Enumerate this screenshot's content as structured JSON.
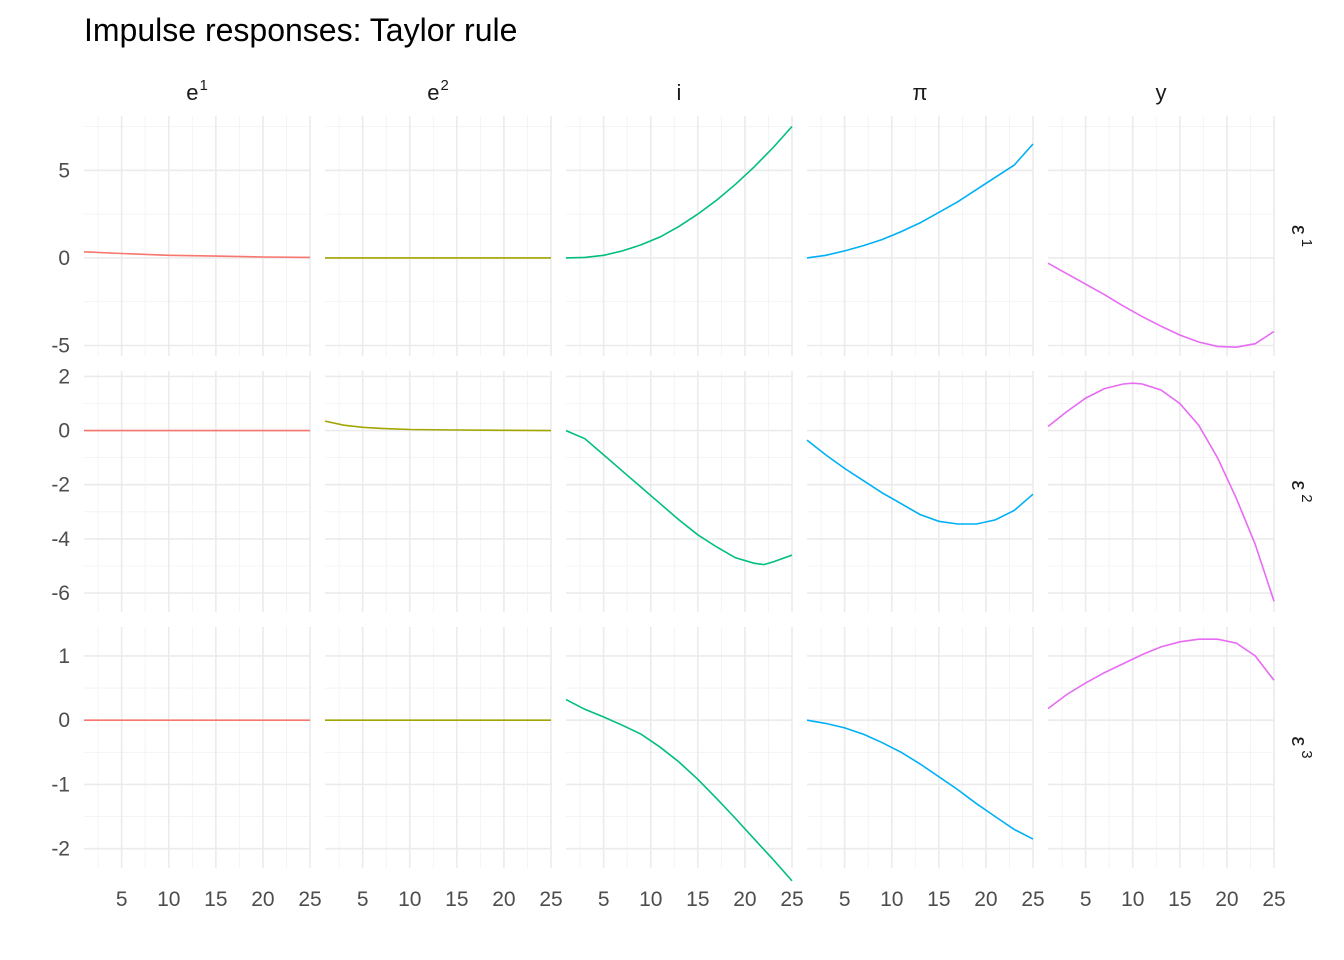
{
  "chart_data": {
    "type": "line",
    "title": "Impulse responses: Taylor rule",
    "columns": [
      {
        "key": "e1",
        "base": "e",
        "sup": "1"
      },
      {
        "key": "e2",
        "base": "e",
        "sup": "2"
      },
      {
        "key": "i",
        "base": "i",
        "sup": ""
      },
      {
        "key": "pi",
        "base": "π",
        "sup": ""
      },
      {
        "key": "y",
        "base": "y",
        "sup": ""
      }
    ],
    "rows": [
      {
        "key": "eps1",
        "base": "ε",
        "sup": "1",
        "ylim": [
          -5.6,
          8.1
        ],
        "yticks": [
          -5,
          0,
          5
        ]
      },
      {
        "key": "eps2",
        "base": "ε",
        "sup": "2",
        "ylim": [
          -6.7,
          2.2
        ],
        "yticks": [
          -6,
          -4,
          -2,
          0,
          2
        ]
      },
      {
        "key": "eps3",
        "base": "ε",
        "sup": "3",
        "ylim": [
          -2.3,
          1.45
        ],
        "yticks": [
          -2,
          -1,
          0,
          1
        ]
      }
    ],
    "xlim": [
      1,
      25
    ],
    "xticks": [
      5,
      10,
      15,
      20,
      25
    ],
    "colors": {
      "e1": "#F8766D",
      "e2": "#A3A500",
      "i": "#00BF7D",
      "pi": "#00B0F6",
      "y": "#E76BF3"
    },
    "series": [
      {
        "row": "eps1",
        "col": "e1",
        "x": [
          1,
          5,
          10,
          15,
          20,
          25
        ],
        "y": [
          0.35,
          0.25,
          0.15,
          0.1,
          0.05,
          0.03
        ]
      },
      {
        "row": "eps1",
        "col": "e2",
        "x": [
          1,
          25
        ],
        "y": [
          0.0,
          0.0
        ]
      },
      {
        "row": "eps1",
        "col": "i",
        "x": [
          1,
          3,
          5,
          7,
          9,
          11,
          13,
          15,
          17,
          19,
          21,
          23,
          25
        ],
        "y": [
          0.0,
          0.03,
          0.15,
          0.4,
          0.75,
          1.2,
          1.8,
          2.5,
          3.3,
          4.2,
          5.2,
          6.3,
          7.5
        ]
      },
      {
        "row": "eps1",
        "col": "pi",
        "x": [
          1,
          3,
          5,
          7,
          9,
          11,
          13,
          15,
          17,
          19,
          21,
          23,
          25
        ],
        "y": [
          0.0,
          0.15,
          0.4,
          0.7,
          1.05,
          1.5,
          2.0,
          2.6,
          3.2,
          3.9,
          4.6,
          5.3,
          6.5
        ]
      },
      {
        "row": "eps1",
        "col": "y",
        "x": [
          1,
          3,
          5,
          7,
          9,
          11,
          13,
          15,
          17,
          19,
          21,
          23,
          25
        ],
        "y": [
          -0.3,
          -0.9,
          -1.5,
          -2.1,
          -2.75,
          -3.35,
          -3.9,
          -4.4,
          -4.8,
          -5.05,
          -5.1,
          -4.9,
          -4.2
        ]
      },
      {
        "row": "eps2",
        "col": "e1",
        "x": [
          1,
          25
        ],
        "y": [
          0.0,
          0.0
        ]
      },
      {
        "row": "eps2",
        "col": "e2",
        "x": [
          1,
          3,
          5,
          7,
          10,
          15,
          20,
          25
        ],
        "y": [
          0.35,
          0.2,
          0.12,
          0.08,
          0.04,
          0.02,
          0.01,
          0.0
        ]
      },
      {
        "row": "eps2",
        "col": "i",
        "x": [
          1,
          3,
          5,
          7,
          9,
          11,
          13,
          15,
          17,
          19,
          21,
          22,
          23,
          25
        ],
        "y": [
          0.0,
          -0.3,
          -0.9,
          -1.5,
          -2.1,
          -2.7,
          -3.3,
          -3.85,
          -4.3,
          -4.7,
          -4.9,
          -4.95,
          -4.85,
          -4.6
        ]
      },
      {
        "row": "eps2",
        "col": "pi",
        "x": [
          1,
          3,
          5,
          7,
          9,
          11,
          13,
          15,
          17,
          19,
          21,
          23,
          25
        ],
        "y": [
          -0.35,
          -0.9,
          -1.4,
          -1.85,
          -2.3,
          -2.7,
          -3.1,
          -3.35,
          -3.45,
          -3.45,
          -3.3,
          -2.95,
          -2.35
        ]
      },
      {
        "row": "eps2",
        "col": "y",
        "x": [
          1,
          3,
          5,
          7,
          9,
          10,
          11,
          13,
          15,
          17,
          19,
          21,
          23,
          25
        ],
        "y": [
          0.15,
          0.7,
          1.2,
          1.55,
          1.72,
          1.75,
          1.72,
          1.5,
          1.0,
          0.2,
          -1.0,
          -2.5,
          -4.2,
          -6.3
        ]
      },
      {
        "row": "eps3",
        "col": "e1",
        "x": [
          1,
          25
        ],
        "y": [
          0.0,
          0.0
        ]
      },
      {
        "row": "eps3",
        "col": "e2",
        "x": [
          1,
          25
        ],
        "y": [
          0.0,
          0.0
        ]
      },
      {
        "row": "eps3",
        "col": "i",
        "x": [
          1,
          3,
          5,
          7,
          9,
          11,
          13,
          15,
          17,
          19,
          21,
          23,
          25
        ],
        "y": [
          0.32,
          0.17,
          0.05,
          -0.08,
          -0.22,
          -0.42,
          -0.65,
          -0.92,
          -1.22,
          -1.53,
          -1.85,
          -2.17,
          -2.5
        ]
      },
      {
        "row": "eps3",
        "col": "pi",
        "x": [
          1,
          3,
          5,
          7,
          9,
          11,
          13,
          15,
          17,
          19,
          21,
          23,
          25
        ],
        "y": [
          0.0,
          -0.05,
          -0.12,
          -0.22,
          -0.35,
          -0.5,
          -0.68,
          -0.88,
          -1.08,
          -1.3,
          -1.5,
          -1.7,
          -1.85
        ]
      },
      {
        "row": "eps3",
        "col": "y",
        "x": [
          1,
          3,
          5,
          7,
          9,
          11,
          13,
          15,
          17,
          19,
          21,
          23,
          25
        ],
        "y": [
          0.18,
          0.4,
          0.58,
          0.74,
          0.88,
          1.02,
          1.14,
          1.22,
          1.26,
          1.26,
          1.2,
          1.0,
          0.62
        ]
      }
    ]
  }
}
